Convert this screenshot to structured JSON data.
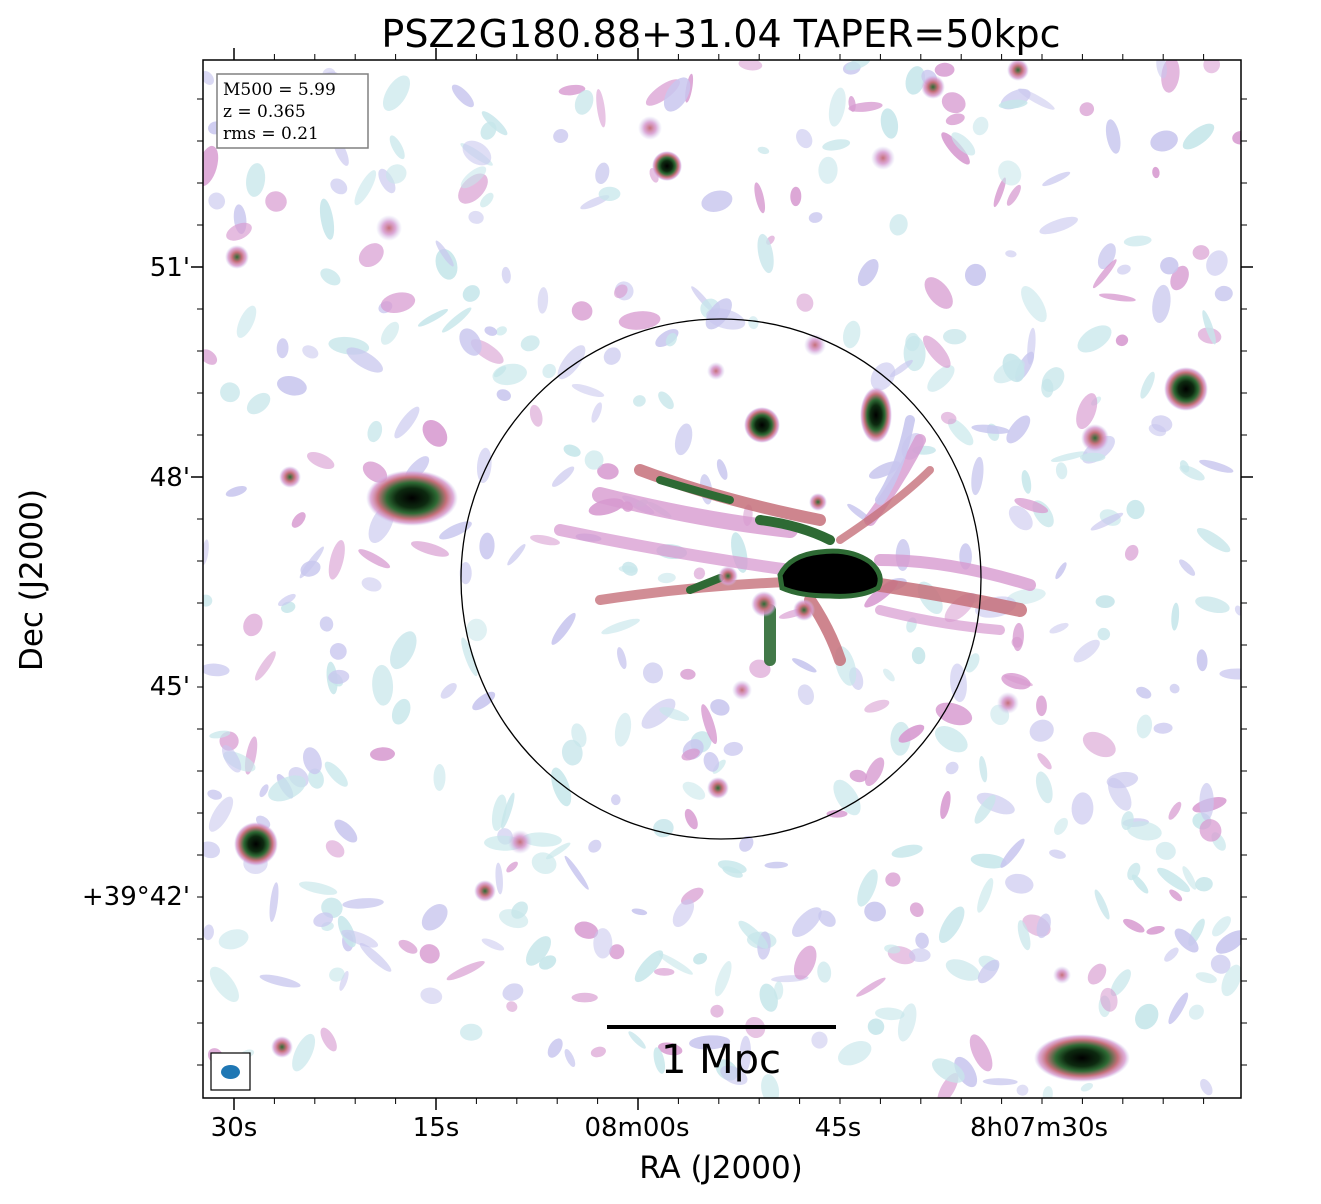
{
  "title": "PSZ2G180.88+31.04 TAPER=50kpc",
  "info_box": {
    "m500": "M500 = 5.99",
    "z": "z = 0.365",
    "rms": "rms = 0.21"
  },
  "axes": {
    "xlabel": "RA (J2000)",
    "ylabel": "Dec (J2000)",
    "x_ticks": [
      "30s",
      "15s",
      "08m00s",
      "45s",
      "8h07m30s"
    ],
    "y_ticks": [
      "51'",
      "48'",
      "45'",
      "+39°42'"
    ]
  },
  "scalebar": {
    "label": "1 Mpc"
  },
  "colors": {
    "frame": "#000000",
    "beam": "#1f77b4",
    "noise_light": "#c6e6ea",
    "noise_mid": "#c8c6ee",
    "noise_pink": "#d79ad0",
    "emission_red": "#c5707a",
    "emission_green": "#2e6a34",
    "emission_peak": "#000000"
  }
}
